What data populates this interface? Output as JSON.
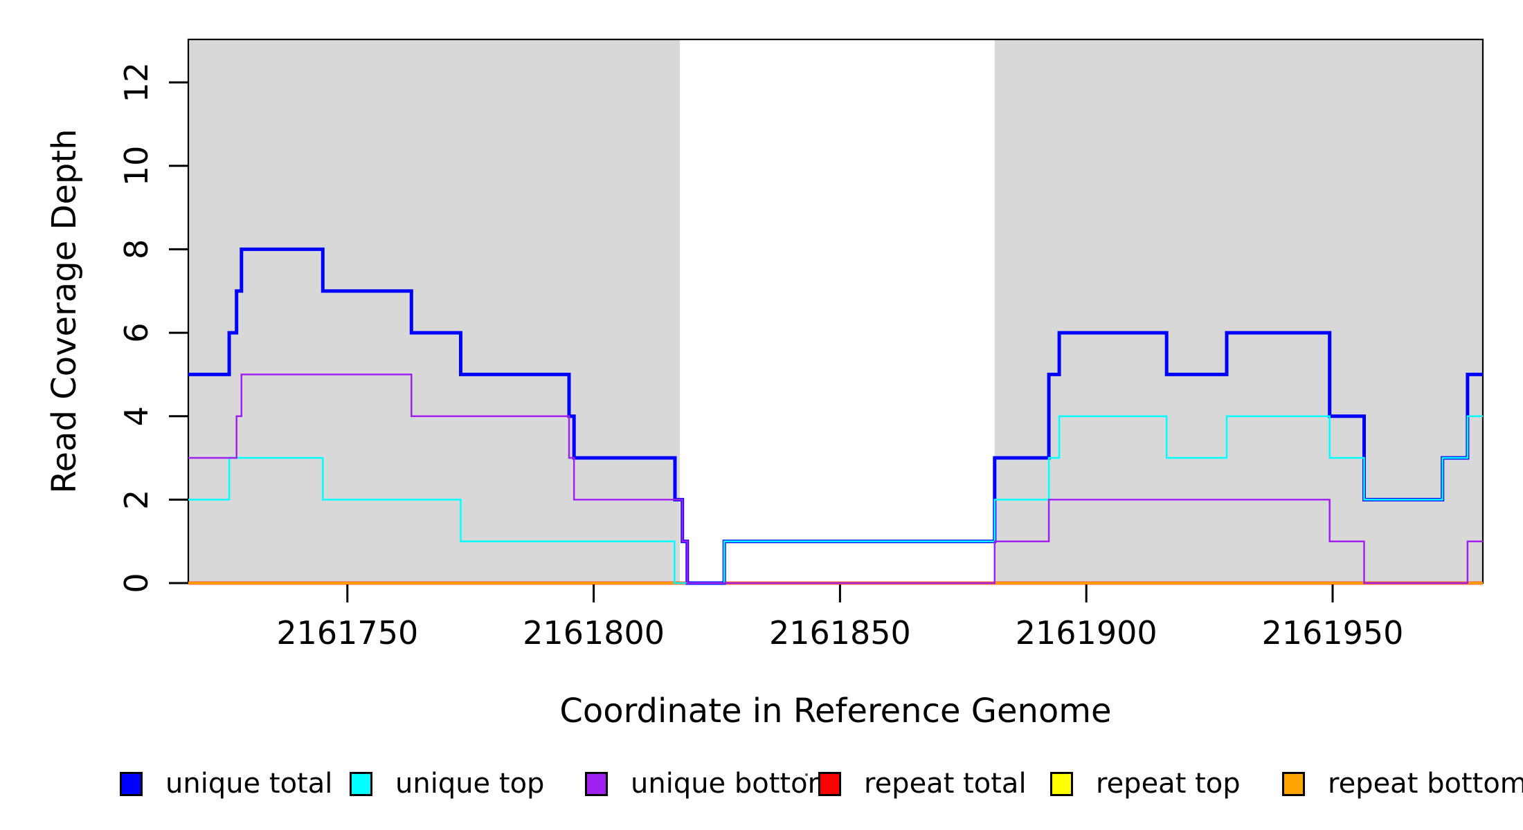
{
  "figure": {
    "background_color": "#FFFFFF",
    "shaded_region_color": "#D8D8D8",
    "axes": {
      "x_label": "Coordinate in Reference Genome",
      "y_label": "Read Coverage Depth",
      "x_tick_labels": [
        "2161750",
        "2161800",
        "2161850",
        "2161900",
        "2161950"
      ],
      "y_tick_labels": [
        "0",
        "2",
        "4",
        "6",
        "8",
        "10",
        "12"
      ]
    },
    "legend": {
      "items": [
        {
          "id": "unique-total",
          "label": "unique total",
          "color": "#0000FF"
        },
        {
          "id": "unique-top",
          "label": "unique top",
          "color": "#00FFFF"
        },
        {
          "id": "unique-bottom",
          "label": "unique bottom",
          "color": "#A020F0"
        },
        {
          "id": "repeat-total",
          "label": "repeat total",
          "color": "#FF0000"
        },
        {
          "id": "repeat-top",
          "label": "repeat top",
          "color": "#FFFF00"
        },
        {
          "id": "repeat-bottom",
          "label": "repeat bottom",
          "color": "#FFA500"
        }
      ]
    }
  },
  "chart_data": {
    "type": "line",
    "subtype": "step",
    "title": "",
    "xlabel": "Coordinate in Reference Genome",
    "ylabel": "Read Coverage Depth",
    "xlim": [
      2161717.7,
      2161980.5
    ],
    "ylim": [
      0,
      13.03
    ],
    "x_ticks": [
      2161750,
      2161800,
      2161850,
      2161900,
      2161950
    ],
    "y_ticks": [
      0,
      2,
      4,
      6,
      8,
      10,
      12
    ],
    "grid": false,
    "legend_position": "bottom",
    "shaded_regions": {
      "color": "#D8D8D8",
      "ranges": [
        [
          2161717.7,
          2161817.5
        ],
        [
          2161881.4,
          2161980.5
        ]
      ]
    },
    "draw_order": [
      "repeat total",
      "repeat top",
      "repeat bottom",
      "unique total",
      "unique top",
      "unique bottom"
    ],
    "series": [
      {
        "name": "unique total",
        "color": "#0000FF",
        "width": 5,
        "steps": [
          [
            2161717.7,
            5
          ],
          [
            2161726,
            6
          ],
          [
            2161727.5,
            7
          ],
          [
            2161728.5,
            8
          ],
          [
            2161745,
            7
          ],
          [
            2161763,
            6
          ],
          [
            2161773,
            5
          ],
          [
            2161795,
            4
          ],
          [
            2161796,
            3
          ],
          [
            2161816.5,
            2
          ],
          [
            2161818,
            1
          ],
          [
            2161819,
            0
          ],
          [
            2161826.5,
            1
          ],
          [
            2161881.4,
            3
          ],
          [
            2161892.4,
            5
          ],
          [
            2161894.5,
            6
          ],
          [
            2161916.3,
            5
          ],
          [
            2161928.5,
            6
          ],
          [
            2161949.4,
            4
          ],
          [
            2161956.4,
            2
          ],
          [
            2161972.3,
            3
          ],
          [
            2161977.4,
            5
          ]
        ]
      },
      {
        "name": "unique top",
        "color": "#00FFFF",
        "width": 2.5,
        "steps": [
          [
            2161717.7,
            2
          ],
          [
            2161726,
            3
          ],
          [
            2161745,
            2
          ],
          [
            2161773,
            1
          ],
          [
            2161816.4,
            0
          ],
          [
            2161826.5,
            1
          ],
          [
            2161881.4,
            2
          ],
          [
            2161892.4,
            3
          ],
          [
            2161894.5,
            4
          ],
          [
            2161916.3,
            3
          ],
          [
            2161928.5,
            4
          ],
          [
            2161949.4,
            3
          ],
          [
            2161956.4,
            2
          ],
          [
            2161972.3,
            3
          ],
          [
            2161977.4,
            4
          ]
        ]
      },
      {
        "name": "unique bottom",
        "color": "#A020F0",
        "width": 2.5,
        "steps": [
          [
            2161717.7,
            3
          ],
          [
            2161727.5,
            4
          ],
          [
            2161728.5,
            5
          ],
          [
            2161763,
            4
          ],
          [
            2161795,
            3
          ],
          [
            2161796,
            2
          ],
          [
            2161818,
            1
          ],
          [
            2161819,
            0
          ],
          [
            2161881.4,
            1
          ],
          [
            2161892.4,
            2
          ],
          [
            2161949.4,
            1
          ],
          [
            2161956.4,
            0
          ],
          [
            2161977.4,
            1
          ]
        ]
      },
      {
        "name": "repeat total",
        "color": "#FF0000",
        "width": 4.5,
        "steps": [
          [
            2161717.7,
            0
          ]
        ]
      },
      {
        "name": "repeat top",
        "color": "#FFFF00",
        "width": 2.5,
        "steps": [
          [
            2161717.7,
            0
          ]
        ]
      },
      {
        "name": "repeat bottom",
        "color": "#FFA500",
        "width": 3.5,
        "steps": [
          [
            2161717.7,
            0
          ]
        ]
      }
    ]
  }
}
